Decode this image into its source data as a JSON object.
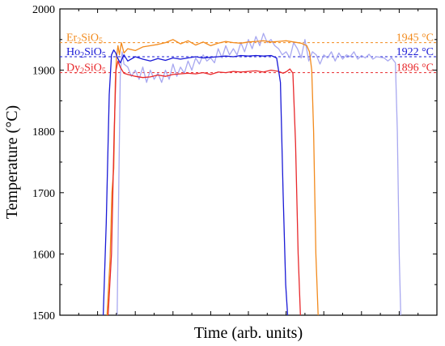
{
  "chart_data": {
    "type": "line",
    "xlabel": "Time (arb. units)",
    "ylabel": "Temperature (°C)",
    "xlim": [
      0,
      100
    ],
    "ylim": [
      1500,
      2000
    ],
    "y_ticks": [
      1500,
      1600,
      1700,
      1800,
      1900,
      2000
    ],
    "x_ticks": "unlabeled",
    "grid": false,
    "legend": "inline-top-left",
    "annotations": [
      {
        "label_base": "Er",
        "label_sub1": "2",
        "label_mid": "SiO",
        "label_sub2": "5",
        "value": 1945,
        "value_text": "1945 °C",
        "color": "#f28a1c"
      },
      {
        "label_base": "Ho",
        "label_sub1": "2",
        "label_mid": "SiO",
        "label_sub2": "5",
        "value": 1922,
        "value_text": "1922 °C",
        "color": "#1a1ad6"
      },
      {
        "label_base": "Dy",
        "label_sub1": "2",
        "label_mid": "SiO",
        "label_sub2": "5",
        "value": 1896,
        "value_text": "1896 °C",
        "color": "#e8282b"
      }
    ],
    "series": [
      {
        "color": "#f28a1c",
        "x": [
          12.5,
          13.3,
          13.8,
          14.3,
          14.7,
          15.0,
          15.4,
          15.8,
          16.3,
          17,
          18,
          20,
          22,
          24,
          26,
          28,
          30,
          32,
          34,
          36,
          38,
          40,
          42,
          44,
          46,
          48,
          50,
          52,
          54,
          56,
          58,
          60,
          62,
          64,
          65.5,
          66.2,
          66.8,
          67.3,
          67.9,
          68.5
        ],
        "y": [
          1500,
          1590,
          1700,
          1740,
          1880,
          1920,
          1940,
          1925,
          1945,
          1928,
          1935,
          1932,
          1938,
          1940,
          1942,
          1945,
          1950,
          1943,
          1948,
          1941,
          1946,
          1940,
          1944,
          1947,
          1945,
          1944,
          1946,
          1947,
          1948,
          1946,
          1947,
          1948,
          1946,
          1944,
          1940,
          1930,
          1900,
          1800,
          1600,
          1500
        ]
      },
      {
        "color": "#1a1ad6",
        "x": [
          11.5,
          12.3,
          13.1,
          13.7,
          14.3,
          14.8,
          15.3,
          16,
          17,
          18,
          20,
          22,
          24,
          26,
          28,
          30,
          32,
          34,
          36,
          38,
          40,
          42,
          44,
          46,
          48,
          50,
          52,
          54,
          56,
          57.5,
          58.5,
          59.2,
          59.9,
          60.4
        ],
        "y": [
          1500,
          1650,
          1860,
          1925,
          1933,
          1928,
          1920,
          1912,
          1925,
          1915,
          1922,
          1918,
          1915,
          1919,
          1916,
          1920,
          1918,
          1920,
          1922,
          1920,
          1921,
          1922,
          1923,
          1922,
          1924,
          1923,
          1924,
          1923,
          1924,
          1920,
          1880,
          1700,
          1550,
          1500
        ]
      },
      {
        "color": "#e8282b",
        "x": [
          12.8,
          13.7,
          14.4,
          14.9,
          15.4,
          16,
          17,
          18,
          20,
          22,
          24,
          26,
          28,
          30,
          32,
          34,
          36,
          38,
          40,
          42,
          44,
          46,
          48,
          50,
          52,
          54,
          56,
          58,
          59.2,
          60.2,
          61,
          61.8,
          62.5,
          63.2,
          63.8
        ],
        "y": [
          1500,
          1600,
          1800,
          1900,
          1915,
          1905,
          1895,
          1893,
          1890,
          1888,
          1889,
          1892,
          1890,
          1893,
          1894,
          1895,
          1894,
          1896,
          1893,
          1897,
          1896,
          1898,
          1897,
          1898,
          1899,
          1897,
          1900,
          1898,
          1895,
          1898,
          1902,
          1895,
          1780,
          1600,
          1500
        ]
      },
      {
        "color": "#a8a8f0",
        "x": [
          15.2,
          15.6,
          16.0,
          16.5,
          17,
          18,
          19,
          20,
          21,
          22,
          23,
          24,
          25,
          26,
          27,
          28,
          29,
          30,
          31,
          32,
          33,
          34,
          35,
          36,
          37,
          38,
          39,
          40,
          41,
          42,
          43,
          44,
          45,
          46,
          47,
          48,
          49,
          50,
          51,
          52,
          53,
          54,
          55,
          56,
          57,
          58,
          59,
          60,
          61,
          62,
          63,
          64,
          65,
          66,
          67,
          68,
          69,
          70,
          71,
          72,
          73,
          74,
          75,
          76,
          77,
          78,
          79,
          80,
          81,
          82,
          83,
          84,
          85,
          86,
          87,
          88,
          89,
          89.5,
          90.0,
          90.4
        ],
        "y": [
          1500,
          1700,
          1890,
          1930,
          1910,
          1905,
          1890,
          1900,
          1885,
          1905,
          1880,
          1900,
          1885,
          1895,
          1880,
          1900,
          1885,
          1910,
          1890,
          1905,
          1895,
          1915,
          1900,
          1920,
          1910,
          1925,
          1915,
          1920,
          1912,
          1935,
          1920,
          1940,
          1925,
          1935,
          1925,
          1945,
          1930,
          1950,
          1935,
          1955,
          1940,
          1960,
          1945,
          1950,
          1940,
          1935,
          1925,
          1930,
          1920,
          1945,
          1935,
          1920,
          1950,
          1915,
          1930,
          1925,
          1910,
          1925,
          1920,
          1930,
          1915,
          1928,
          1918,
          1925,
          1922,
          1930,
          1918,
          1924,
          1920,
          1926,
          1918,
          1922,
          1921,
          1920,
          1915,
          1920,
          1912,
          1800,
          1600,
          1500
        ]
      }
    ]
  }
}
